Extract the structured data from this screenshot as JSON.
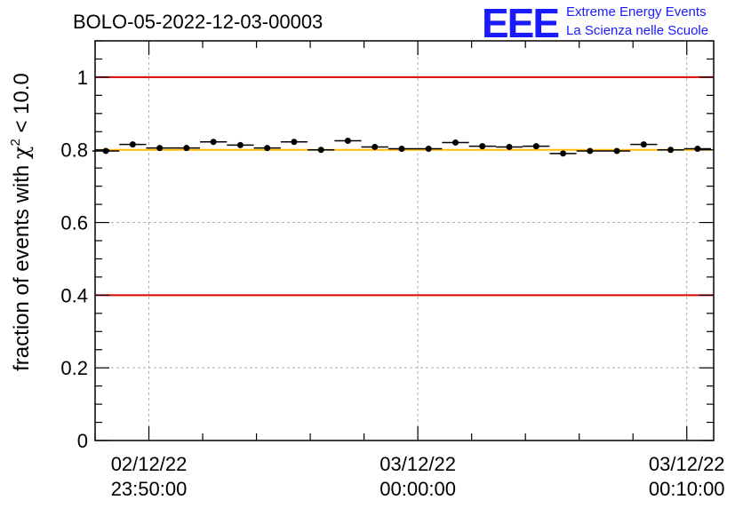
{
  "title": "BOLO-05-2022-12-03-00003",
  "logo": {
    "letters": "EEE",
    "line1": "Extreme Energy Events",
    "line2": "La Scienza nelle Scuole"
  },
  "colors": {
    "threshold_line": "#dd0000",
    "reference_line": "#ffbb00",
    "marker": "#000000",
    "grid": "#b0b0b0",
    "logo": "#1a1aff"
  },
  "chart_data": {
    "type": "scatter",
    "title": "BOLO-05-2022-12-03-00003",
    "ylabel": "fraction of events with χ² < 10.0",
    "ylabel_parts": {
      "pre": "fraction of events with ",
      "symbol": "χ",
      "sup": "2",
      "post": " < 10.0"
    },
    "ylim": [
      0,
      1.1
    ],
    "yticks": [
      0,
      0.2,
      0.4,
      0.6,
      0.8,
      1
    ],
    "ytick_labels": [
      "0",
      "0.2",
      "0.4",
      "0.6",
      "0.8",
      "1"
    ],
    "x_unit": "minutes relative to 03/12/22 00:00:00",
    "xlim": [
      -12,
      11
    ],
    "xticks": [
      -10,
      0,
      10
    ],
    "xtick_labels": [
      [
        "02/12/22",
        "23:50:00"
      ],
      [
        "03/12/22",
        "00:00:00"
      ],
      [
        "03/12/22",
        "00:10:00"
      ]
    ],
    "grid": true,
    "horizontal_lines": [
      {
        "y": 1.0,
        "color": "#dd0000"
      },
      {
        "y": 0.8,
        "color": "#ffbb00"
      },
      {
        "y": 0.4,
        "color": "#dd0000"
      }
    ],
    "bin_width": 1,
    "series": [
      {
        "x": [
          -11.6,
          -10.6,
          -9.6,
          -8.6,
          -7.6,
          -6.6,
          -5.6,
          -4.6,
          -3.6,
          -2.6,
          -1.6,
          -0.6,
          0.4,
          1.4,
          2.4,
          3.4,
          4.4,
          5.4,
          6.4,
          7.4,
          8.4,
          9.4,
          10.4
        ],
        "y": [
          0.797,
          0.815,
          0.805,
          0.805,
          0.822,
          0.813,
          0.805,
          0.822,
          0.8,
          0.825,
          0.808,
          0.803,
          0.803,
          0.82,
          0.81,
          0.808,
          0.81,
          0.79,
          0.797,
          0.797,
          0.815,
          0.8,
          0.803
        ]
      }
    ]
  }
}
